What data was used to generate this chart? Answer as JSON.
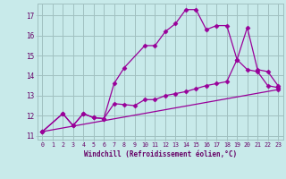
{
  "bg_color": "#c8eaea",
  "line_color": "#990099",
  "grid_color": "#a0c0c0",
  "xlabel": "Windchill (Refroidissement éolien,°C)",
  "xlabel_color": "#660066",
  "tick_color": "#660066",
  "xlim": [
    -0.5,
    23.5
  ],
  "ylim": [
    10.8,
    17.6
  ],
  "yticks": [
    11,
    12,
    13,
    14,
    15,
    16,
    17
  ],
  "xticks": [
    0,
    1,
    2,
    3,
    4,
    5,
    6,
    7,
    8,
    9,
    10,
    11,
    12,
    13,
    14,
    15,
    16,
    17,
    18,
    19,
    20,
    21,
    22,
    23
  ],
  "line1_x": [
    0,
    2,
    3,
    4,
    5,
    6,
    7,
    8,
    10,
    11,
    12,
    13,
    14,
    15,
    16,
    17,
    18,
    19,
    20,
    21,
    22,
    23
  ],
  "line1_y": [
    11.2,
    12.1,
    11.5,
    12.1,
    11.9,
    11.85,
    13.6,
    14.4,
    15.5,
    15.5,
    16.2,
    16.6,
    17.3,
    17.3,
    16.3,
    16.5,
    16.5,
    14.8,
    16.4,
    14.3,
    14.2,
    13.5
  ],
  "line2_x": [
    0,
    2,
    3,
    4,
    5,
    6,
    7,
    8,
    9,
    10,
    11,
    12,
    13,
    14,
    15,
    16,
    17,
    18,
    19,
    20,
    21,
    22,
    23
  ],
  "line2_y": [
    11.2,
    12.1,
    11.5,
    12.1,
    11.9,
    11.85,
    12.6,
    12.55,
    12.5,
    12.8,
    12.8,
    13.0,
    13.1,
    13.2,
    13.35,
    13.5,
    13.6,
    13.7,
    14.8,
    14.3,
    14.2,
    13.5,
    13.4
  ],
  "line3_x": [
    0,
    23
  ],
  "line3_y": [
    11.2,
    13.3
  ]
}
